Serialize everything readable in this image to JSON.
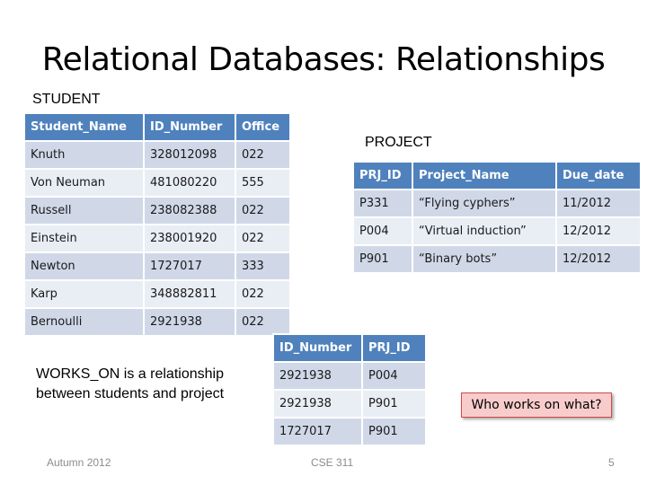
{
  "slide": {
    "title": "Relational Databases: Relationships",
    "student_label": "STUDENT",
    "project_label": "PROJECT",
    "note_line1": "WORKS_ON is a relationship",
    "note_line2": "between students and project",
    "callout": "Who works on what?",
    "footer_left": "Autumn 2012",
    "footer_center": "CSE 311",
    "footer_right": "5"
  },
  "student_table": {
    "headers": [
      "Student_Name",
      "ID_Number",
      "Office"
    ],
    "rows": [
      [
        "Knuth",
        "328012098",
        "022"
      ],
      [
        "Von Neuman",
        "481080220",
        "555"
      ],
      [
        "Russell",
        "238082388",
        "022"
      ],
      [
        "Einstein",
        "238001920",
        "022"
      ],
      [
        "Newton",
        "1727017",
        "333"
      ],
      [
        "Karp",
        "348882811",
        "022"
      ],
      [
        "Bernoulli",
        "2921938",
        "022"
      ]
    ]
  },
  "project_table": {
    "headers": [
      "PRJ_ID",
      "Project_Name",
      "Due_date"
    ],
    "rows": [
      [
        "P331",
        "“Flying cyphers”",
        "11/2012"
      ],
      [
        "P004",
        "“Virtual induction”",
        "12/2012"
      ],
      [
        "P901",
        "“Binary bots”",
        "12/2012"
      ]
    ]
  },
  "works_on_table": {
    "headers": [
      "ID_Number",
      "PRJ_ID"
    ],
    "rows": [
      [
        "2921938",
        "P004"
      ],
      [
        "2921938",
        "P901"
      ],
      [
        "1727017",
        "P901"
      ]
    ]
  }
}
